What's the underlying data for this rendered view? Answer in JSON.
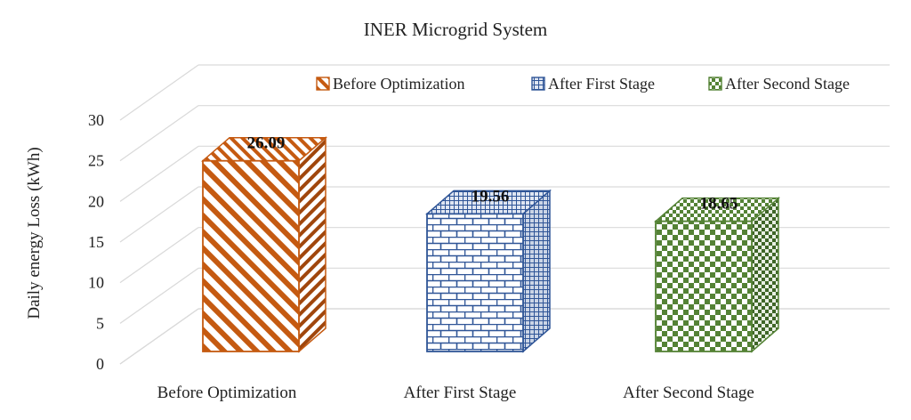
{
  "chart_data": {
    "type": "bar",
    "title": "INER Microgrid  System",
    "ylabel": "Daily energy Loss (kWh)",
    "xlabel": "",
    "categories": [
      "Before Optimization",
      "After First Stage",
      "After Second Stage"
    ],
    "values": [
      26.09,
      19.56,
      18.65
    ],
    "data_labels": [
      "26.09",
      "19.56",
      "18.65"
    ],
    "ylim": [
      0,
      30
    ],
    "yticks": [
      0,
      5,
      10,
      15,
      20,
      25,
      30
    ],
    "grid": true,
    "legend_placement": "top-right",
    "legend": [
      "Before Optimization",
      "After First Stage",
      "After Second Stage"
    ],
    "series_colors": [
      "#c55a11",
      "#2f5597",
      "#548235"
    ],
    "three_d": true
  }
}
